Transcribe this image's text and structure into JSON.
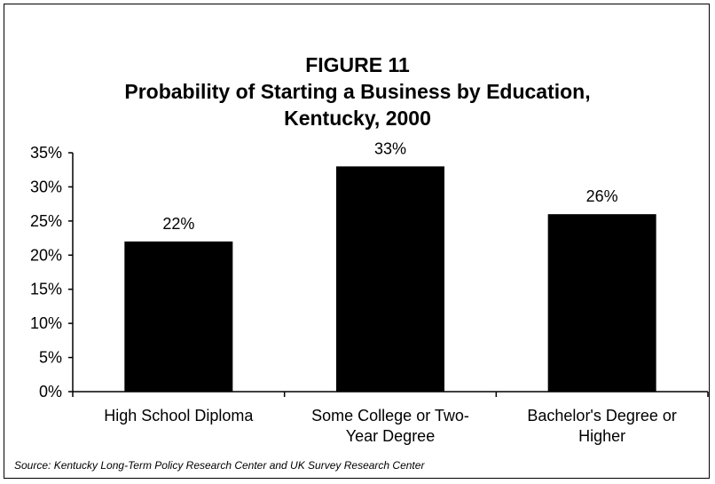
{
  "figure": {
    "label": "FIGURE 11",
    "title_line1": "Probability of Starting a Business by Education,",
    "title_line2": "Kentucky, 2000",
    "source": "Source: Kentucky Long-Term Policy Research Center and UK Survey Research Center"
  },
  "chart_data": {
    "type": "bar",
    "title": "Probability of Starting a Business by Education, Kentucky, 2000",
    "xlabel": "",
    "ylabel": "",
    "categories": [
      [
        "High School Diploma"
      ],
      [
        "Some College or Two-",
        "Year Degree"
      ],
      [
        "Bachelor's Degree or",
        "Higher"
      ]
    ],
    "values": [
      22,
      33,
      26
    ],
    "data_labels": [
      "22%",
      "33%",
      "26%"
    ],
    "ylim": [
      0,
      35
    ],
    "yticks": [
      0,
      5,
      10,
      15,
      20,
      25,
      30,
      35
    ],
    "ytick_labels": [
      "0%",
      "5%",
      "10%",
      "15%",
      "20%",
      "25%",
      "30%",
      "35%"
    ],
    "grid": false,
    "legend": "none",
    "bar_color": "#000000"
  }
}
